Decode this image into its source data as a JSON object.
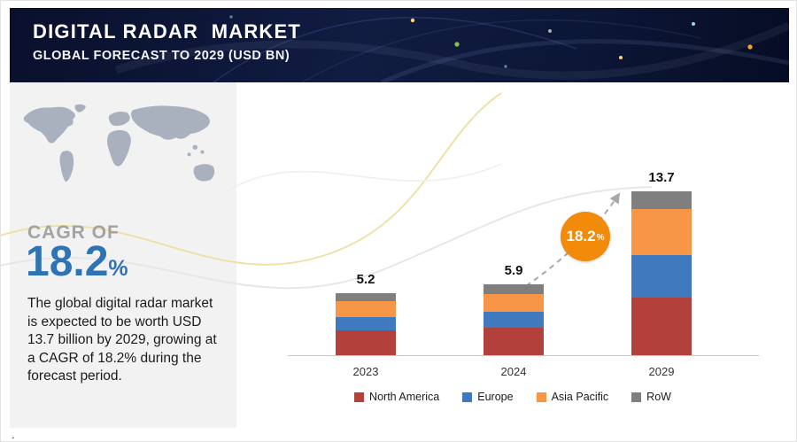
{
  "header": {
    "title": "DIGITAL RADAR  MARKET",
    "subtitle": "GLOBAL FORECAST TO 2029 (USD BN)"
  },
  "sidebar": {
    "cagr_label": "CAGR OF",
    "cagr_value": "18.2",
    "cagr_percent_sign": "%",
    "description": "The global digital radar market is expected to be worth USD 13.7 billion by 2029, growing at a CAGR of 18.2% during the forecast period."
  },
  "badge": {
    "value": "18.2",
    "percent": "%"
  },
  "footer": {
    "dot": "."
  },
  "chart_data": {
    "type": "bar",
    "stacked": true,
    "title": "Digital Radar Market - Global Forecast to 2029 (USD BN)",
    "categories": [
      "2023",
      "2024",
      "2029"
    ],
    "series": [
      {
        "name": "North America",
        "color": "#b2413c",
        "values": [
          2.1,
          2.3,
          4.8
        ]
      },
      {
        "name": "Europe",
        "color": "#4079bd",
        "values": [
          1.1,
          1.3,
          3.6
        ]
      },
      {
        "name": "Asia Pacific",
        "color": "#f79646",
        "values": [
          1.3,
          1.5,
          3.8
        ]
      },
      {
        "name": "RoW",
        "color": "#7f7f7f",
        "values": [
          0.7,
          0.8,
          1.5
        ]
      }
    ],
    "totals": [
      5.2,
      5.9,
      13.7
    ],
    "total_labels": [
      "5.2",
      "5.9",
      "13.7"
    ],
    "annotations": [
      {
        "type": "growth-badge",
        "text": "18.2%"
      }
    ],
    "xlabel": "",
    "ylabel": "",
    "ylim": [
      0,
      14
    ],
    "grid": false,
    "legend_position": "bottom"
  }
}
